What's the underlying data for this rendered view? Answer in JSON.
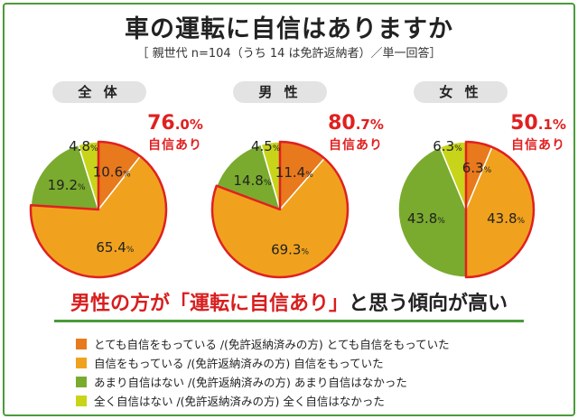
{
  "title": "車の運転に自信はありますか",
  "subtitle": "［ 親世代 n=104（うち 14 は免許返納者）／単一回答］",
  "colors": {
    "frame": "#4a9a3a",
    "accent_red": "#e02020",
    "series": [
      "#e8791c",
      "#f0a21e",
      "#7aab2e",
      "#c8d419"
    ]
  },
  "chart_data": {
    "type": "pie",
    "series": [
      {
        "name": "とても自信をもっている /(免許返納済みの方) とても自信をもっていた"
      },
      {
        "name": "自信をもっている /(免許返納済みの方) 自信をもっていた"
      },
      {
        "name": "あまり自信はない /(免許返納済みの方) あまり自信はなかった"
      },
      {
        "name": "全く自信はない /(免許返納済みの方) 全く自信はなかった"
      }
    ],
    "charts": [
      {
        "label": "全 体",
        "values": [
          10.6,
          65.4,
          19.2,
          4.8
        ],
        "confidence": "76.0",
        "confidence_int": "76",
        "confidence_dec": ".0%",
        "confidence_label": "自信あり"
      },
      {
        "label": "男 性",
        "values": [
          11.4,
          69.3,
          14.8,
          4.5
        ],
        "confidence": "80.7",
        "confidence_int": "80",
        "confidence_dec": ".7%",
        "confidence_label": "自信あり"
      },
      {
        "label": "女 性",
        "values": [
          6.3,
          43.8,
          43.8,
          6.3
        ],
        "confidence": "50.1",
        "confidence_int": "50",
        "confidence_dec": ".1%",
        "confidence_label": "自信あり"
      }
    ]
  },
  "headline": {
    "red_part": "男性の方が「運転に自信あり」",
    "black_part": "と思う傾向が高い"
  }
}
